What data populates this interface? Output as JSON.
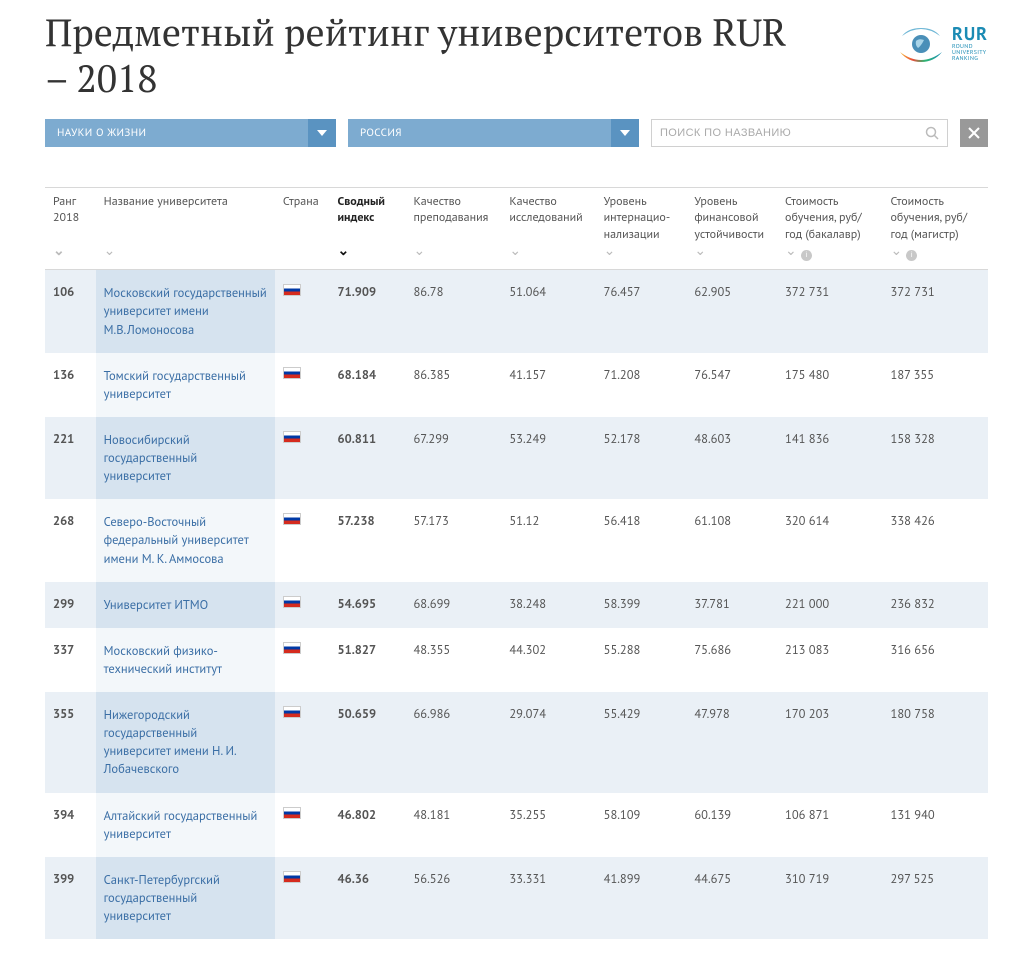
{
  "header": {
    "title": "Предметный рейтинг университетов RUR – 2018",
    "logo_brand": "RUR",
    "logo_sub": "ROUND\nUNIVERSITY\nRANKING"
  },
  "controls": {
    "subject": "НАУКИ О ЖИЗНИ",
    "country": "РОССИЯ",
    "search_placeholder": "ПОИСК ПО НАЗВАНИЮ"
  },
  "table": {
    "columns": [
      {
        "key": "rank",
        "label": "Ранг 2018",
        "class": "col-rank",
        "sortable": true
      },
      {
        "key": "name",
        "label": "Название университета",
        "class": "col-name",
        "sortable": true
      },
      {
        "key": "country",
        "label": "Страна",
        "class": "col-country",
        "sortable": false
      },
      {
        "key": "index",
        "label": "Сводный индекс",
        "class": "col-index",
        "sortable": true,
        "active": true
      },
      {
        "key": "teach",
        "label": "Качество преподавания",
        "class": "col-metric",
        "sortable": true
      },
      {
        "key": "research",
        "label": "Качество исследований",
        "class": "col-metric",
        "sortable": true
      },
      {
        "key": "intl",
        "label": "Уровень интернацио-нализации",
        "class": "col-metric",
        "sortable": true
      },
      {
        "key": "finance",
        "label": "Уровень финансовой устойчивости",
        "class": "col-metric",
        "sortable": true
      },
      {
        "key": "price_b",
        "label": "Стоимость обучения, руб/год (бакалавр)",
        "class": "col-price",
        "sortable": true,
        "info": true
      },
      {
        "key": "price_m",
        "label": "Стоимость обучения, руб/год (магистр)",
        "class": "col-price",
        "sortable": true,
        "info": true
      }
    ],
    "rows": [
      {
        "rank": "106",
        "name": "Московский государственный университет имени М.В.Ломоносова",
        "country": "ru",
        "index": "71.909",
        "teach": "86.78",
        "research": "51.064",
        "intl": "76.457",
        "finance": "62.905",
        "price_b": "372 731",
        "price_m": "372 731"
      },
      {
        "rank": "136",
        "name": "Томский государственный университет",
        "country": "ru",
        "index": "68.184",
        "teach": "86.385",
        "research": "41.157",
        "intl": "71.208",
        "finance": "76.547",
        "price_b": "175 480",
        "price_m": "187 355"
      },
      {
        "rank": "221",
        "name": "Новосибирский государственный университет",
        "country": "ru",
        "index": "60.811",
        "teach": "67.299",
        "research": "53.249",
        "intl": "52.178",
        "finance": "48.603",
        "price_b": "141 836",
        "price_m": "158 328"
      },
      {
        "rank": "268",
        "name": "Северо-Восточный федеральный университет имени М. К. Аммосова",
        "country": "ru",
        "index": "57.238",
        "teach": "57.173",
        "research": "51.12",
        "intl": "56.418",
        "finance": "61.108",
        "price_b": "320 614",
        "price_m": "338 426"
      },
      {
        "rank": "299",
        "name": "Университет ИТМО",
        "country": "ru",
        "index": "54.695",
        "teach": "68.699",
        "research": "38.248",
        "intl": "58.399",
        "finance": "37.781",
        "price_b": "221 000",
        "price_m": "236 832"
      },
      {
        "rank": "337",
        "name": "Московский физико-технический институт",
        "country": "ru",
        "index": "51.827",
        "teach": "48.355",
        "research": "44.302",
        "intl": "55.288",
        "finance": "75.686",
        "price_b": "213 083",
        "price_m": "316 656"
      },
      {
        "rank": "355",
        "name": "Нижегородский государственный университет имени Н. И. Лобачевского",
        "country": "ru",
        "index": "50.659",
        "teach": "66.986",
        "research": "29.074",
        "intl": "55.429",
        "finance": "47.978",
        "price_b": "170 203",
        "price_m": "180 758"
      },
      {
        "rank": "394",
        "name": "Алтайский государственный университет",
        "country": "ru",
        "index": "46.802",
        "teach": "48.181",
        "research": "35.255",
        "intl": "58.109",
        "finance": "60.139",
        "price_b": "106 871",
        "price_m": "131 940"
      },
      {
        "rank": "399",
        "name": "Санкт-Петербургский государственный университет",
        "country": "ru",
        "index": "46.36",
        "teach": "56.526",
        "research": "33.331",
        "intl": "41.899",
        "finance": "44.675",
        "price_b": "310 719",
        "price_m": "297 525"
      }
    ]
  },
  "colors": {
    "dropdown_bg": "#7dabd0",
    "dropdown_chev": "#5a93c1",
    "row_odd": "#eaf0f6",
    "name_odd": "#d6e3ef",
    "name_even": "#f3f7fa",
    "link": "#3a6ea5"
  }
}
